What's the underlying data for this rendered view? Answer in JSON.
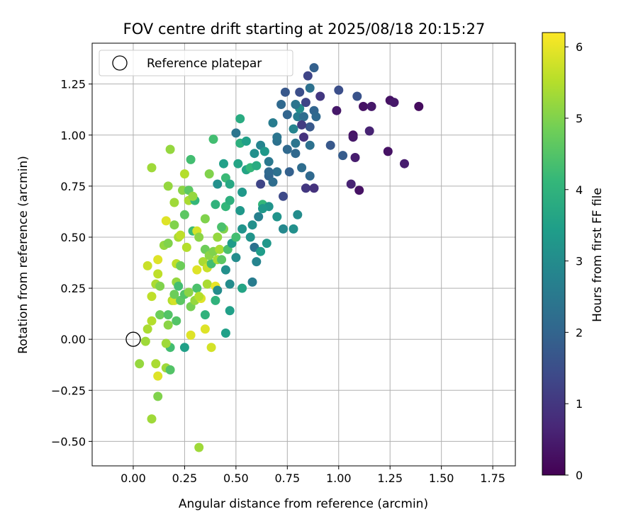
{
  "chart_data": {
    "type": "scatter",
    "title": "FOV centre drift starting at 2025/08/18 20:15:27",
    "xlabel": "Angular distance from reference (arcmin)",
    "ylabel": "Rotation from reference (arcmin)",
    "xlim": [
      -0.2,
      1.86
    ],
    "ylim": [
      -0.62,
      1.45
    ],
    "xticks": [
      "0.00",
      "0.25",
      "0.50",
      "0.75",
      "1.00",
      "1.25",
      "1.50",
      "1.75"
    ],
    "yticks": [
      "−0.50",
      "−0.25",
      "0.00",
      "0.25",
      "0.50",
      "0.75",
      "1.00",
      "1.25"
    ],
    "grid": true,
    "legend": {
      "placement": "top-left",
      "entries": [
        {
          "label": "Reference platepar",
          "marker": "open-circle"
        }
      ]
    },
    "reference_point": {
      "x": 0.0,
      "y": 0.0
    },
    "colorbar": {
      "label": "Hours from first FF file",
      "range": [
        0,
        6.2
      ],
      "ticks": [
        "0",
        "1",
        "2",
        "3",
        "4",
        "5",
        "6"
      ],
      "colormap": "viridis",
      "colormap_stops": [
        "#440154",
        "#482878",
        "#3e4989",
        "#31688e",
        "#26828e",
        "#1f9e89",
        "#35b779",
        "#6ece58",
        "#b5de2b",
        "#fde725"
      ]
    },
    "points": [
      [
        0.32,
        -0.53,
        5.3
      ],
      [
        0.09,
        -0.39,
        5.3
      ],
      [
        0.12,
        -0.28,
        5.0
      ],
      [
        0.12,
        -0.18,
        5.9
      ],
      [
        0.16,
        -0.14,
        5.3
      ],
      [
        0.18,
        -0.15,
        4.5
      ],
      [
        0.11,
        -0.12,
        5.4
      ],
      [
        0.03,
        -0.12,
        5.2
      ],
      [
        0.25,
        -0.04,
        3.5
      ],
      [
        0.18,
        -0.04,
        4.3
      ],
      [
        0.16,
        -0.02,
        5.3
      ],
      [
        0.38,
        -0.04,
        5.8
      ],
      [
        0.06,
        -0.01,
        5.3
      ],
      [
        0.07,
        0.05,
        5.4
      ],
      [
        0.09,
        0.09,
        5.5
      ],
      [
        0.17,
        0.07,
        5.1
      ],
      [
        0.21,
        0.09,
        4.5
      ],
      [
        0.13,
        0.12,
        4.8
      ],
      [
        0.17,
        0.12,
        4.5
      ],
      [
        0.28,
        0.02,
        5.9
      ],
      [
        0.35,
        0.05,
        5.9
      ],
      [
        0.45,
        0.03,
        3.5
      ],
      [
        0.09,
        0.21,
        5.6
      ],
      [
        0.19,
        0.19,
        5.5
      ],
      [
        0.2,
        0.19,
        5.8
      ],
      [
        0.23,
        0.19,
        4.6
      ],
      [
        0.25,
        0.22,
        4.5
      ],
      [
        0.28,
        0.16,
        4.9
      ],
      [
        0.3,
        0.19,
        5.2
      ],
      [
        0.33,
        0.2,
        5.9
      ],
      [
        0.35,
        0.12,
        4.0
      ],
      [
        0.4,
        0.19,
        4.0
      ],
      [
        0.47,
        0.14,
        3.5
      ],
      [
        0.11,
        0.27,
        5.4
      ],
      [
        0.13,
        0.26,
        5.0
      ],
      [
        0.2,
        0.22,
        4.8
      ],
      [
        0.21,
        0.28,
        5.2
      ],
      [
        0.22,
        0.26,
        4.3
      ],
      [
        0.27,
        0.23,
        5.1
      ],
      [
        0.31,
        0.25,
        4.4
      ],
      [
        0.32,
        0.21,
        5.5
      ],
      [
        0.36,
        0.27,
        5.4
      ],
      [
        0.4,
        0.26,
        6.0
      ],
      [
        0.41,
        0.24,
        3.0
      ],
      [
        0.47,
        0.27,
        3.0
      ],
      [
        0.53,
        0.25,
        3.6
      ],
      [
        0.58,
        0.28,
        2.6
      ],
      [
        0.07,
        0.36,
        5.7
      ],
      [
        0.12,
        0.32,
        5.6
      ],
      [
        0.21,
        0.37,
        5.6
      ],
      [
        0.23,
        0.36,
        4.8
      ],
      [
        0.31,
        0.34,
        5.9
      ],
      [
        0.34,
        0.38,
        5.4
      ],
      [
        0.36,
        0.35,
        5.7
      ],
      [
        0.38,
        0.37,
        4.3
      ],
      [
        0.41,
        0.39,
        5.4
      ],
      [
        0.43,
        0.39,
        4.6
      ],
      [
        0.45,
        0.34,
        3.1
      ],
      [
        0.5,
        0.4,
        3.0
      ],
      [
        0.6,
        0.38,
        2.8
      ],
      [
        0.12,
        0.39,
        5.9
      ],
      [
        0.15,
        0.46,
        5.2
      ],
      [
        0.17,
        0.47,
        5.0
      ],
      [
        0.22,
        0.5,
        5.4
      ],
      [
        0.23,
        0.51,
        5.6
      ],
      [
        0.26,
        0.45,
        5.5
      ],
      [
        0.29,
        0.53,
        4.2
      ],
      [
        0.31,
        0.53,
        5.8
      ],
      [
        0.32,
        0.5,
        5.1
      ],
      [
        0.35,
        0.44,
        4.8
      ],
      [
        0.37,
        0.41,
        5.1
      ],
      [
        0.39,
        0.43,
        5.0
      ],
      [
        0.42,
        0.44,
        5.4
      ],
      [
        0.41,
        0.5,
        5.2
      ],
      [
        0.44,
        0.54,
        5.0
      ],
      [
        0.46,
        0.44,
        4.4
      ],
      [
        0.48,
        0.47,
        3.4
      ],
      [
        0.5,
        0.5,
        4.3
      ],
      [
        0.53,
        0.54,
        3.2
      ],
      [
        0.57,
        0.5,
        3.2
      ],
      [
        0.59,
        0.45,
        2.3
      ],
      [
        0.62,
        0.43,
        3.4
      ],
      [
        0.65,
        0.47,
        3.3
      ],
      [
        0.16,
        0.58,
        5.9
      ],
      [
        0.2,
        0.56,
        5.0
      ],
      [
        0.25,
        0.61,
        4.6
      ],
      [
        0.27,
        0.68,
        5.4
      ],
      [
        0.3,
        0.68,
        4.1
      ],
      [
        0.35,
        0.59,
        5.0
      ],
      [
        0.4,
        0.66,
        4.0
      ],
      [
        0.43,
        0.55,
        4.4
      ],
      [
        0.45,
        0.65,
        4.1
      ],
      [
        0.47,
        0.68,
        3.9
      ],
      [
        0.52,
        0.63,
        3.3
      ],
      [
        0.53,
        0.72,
        3.3
      ],
      [
        0.58,
        0.56,
        3.1
      ],
      [
        0.61,
        0.6,
        2.7
      ],
      [
        0.63,
        0.66,
        4.1
      ],
      [
        0.66,
        0.65,
        3.2
      ],
      [
        0.7,
        0.6,
        3.2
      ],
      [
        0.73,
        0.54,
        2.9
      ],
      [
        0.78,
        0.54,
        3.1
      ],
      [
        0.8,
        0.61,
        3.0
      ],
      [
        0.17,
        0.75,
        5.2
      ],
      [
        0.2,
        0.67,
        5.3
      ],
      [
        0.24,
        0.73,
        5.1
      ],
      [
        0.25,
        0.81,
        5.5
      ],
      [
        0.27,
        0.73,
        4.6
      ],
      [
        0.29,
        0.7,
        5.2
      ],
      [
        0.37,
        0.81,
        5.0
      ],
      [
        0.41,
        0.76,
        3.1
      ],
      [
        0.45,
        0.79,
        4.2
      ],
      [
        0.47,
        0.76,
        3.7
      ],
      [
        0.51,
        0.86,
        3.6
      ],
      [
        0.55,
        0.83,
        3.6
      ],
      [
        0.57,
        0.84,
        4.1
      ],
      [
        0.6,
        0.85,
        3.8
      ],
      [
        0.62,
        0.76,
        1.3
      ],
      [
        0.66,
        0.8,
        2.0
      ],
      [
        0.68,
        0.77,
        2.2
      ],
      [
        0.7,
        0.82,
        2.3
      ],
      [
        0.73,
        0.7,
        1.4
      ],
      [
        0.76,
        0.82,
        1.9
      ],
      [
        0.79,
        0.91,
        2.1
      ],
      [
        0.84,
        0.74,
        1.0
      ],
      [
        0.86,
        0.8,
        2.1
      ],
      [
        0.09,
        0.84,
        5.3
      ],
      [
        0.18,
        0.93,
        5.2
      ],
      [
        0.28,
        0.88,
        4.3
      ],
      [
        0.39,
        0.98,
        4.3
      ],
      [
        0.44,
        0.86,
        3.5
      ],
      [
        0.52,
        0.96,
        3.9
      ],
      [
        0.55,
        0.97,
        3.5
      ],
      [
        0.59,
        0.91,
        3.1
      ],
      [
        0.62,
        0.95,
        2.8
      ],
      [
        0.64,
        0.92,
        3.3
      ],
      [
        0.66,
        0.87,
        2.5
      ],
      [
        0.7,
        0.97,
        2.3
      ],
      [
        0.75,
        0.93,
        2.1
      ],
      [
        0.79,
        0.96,
        2.4
      ],
      [
        0.82,
        0.84,
        2.2
      ],
      [
        0.86,
        0.95,
        2.3
      ],
      [
        0.88,
        0.74,
        0.9
      ],
      [
        0.52,
        1.08,
        3.8
      ],
      [
        0.5,
        1.01,
        2.4
      ],
      [
        0.68,
        1.06,
        2.6
      ],
      [
        0.7,
        0.99,
        2.4
      ],
      [
        0.72,
        1.15,
        2.1
      ],
      [
        0.75,
        1.1,
        2.0
      ],
      [
        0.78,
        1.03,
        2.8
      ],
      [
        0.8,
        1.09,
        2.6
      ],
      [
        0.81,
        1.13,
        3.0
      ],
      [
        0.83,
        1.09,
        2.2
      ],
      [
        0.84,
        1.16,
        1.3
      ],
      [
        0.86,
        1.04,
        1.7
      ],
      [
        0.88,
        1.12,
        2.0
      ],
      [
        0.89,
        1.09,
        2.1
      ],
      [
        0.91,
        1.19,
        1.0
      ],
      [
        0.96,
        0.95,
        1.7
      ],
      [
        0.99,
        1.12,
        0.4
      ],
      [
        1.02,
        0.9,
        1.8
      ],
      [
        1.06,
        0.76,
        0.6
      ],
      [
        1.07,
        1.0,
        0.3
      ],
      [
        1.08,
        0.89,
        0.5
      ],
      [
        1.09,
        1.19,
        1.6
      ],
      [
        1.1,
        0.73,
        0.3
      ],
      [
        1.12,
        1.14,
        0.3
      ],
      [
        1.15,
        1.02,
        0.6
      ],
      [
        1.16,
        1.14,
        0.4
      ],
      [
        1.24,
        0.92,
        0.3
      ],
      [
        1.25,
        1.17,
        0.3
      ],
      [
        1.27,
        1.16,
        0.4
      ],
      [
        1.32,
        0.86,
        0.5
      ],
      [
        1.39,
        1.14,
        0.2
      ],
      [
        0.74,
        1.21,
        1.7
      ],
      [
        0.79,
        1.15,
        2.4
      ],
      [
        0.81,
        1.21,
        1.5
      ],
      [
        0.85,
        1.29,
        1.3
      ],
      [
        0.88,
        1.33,
        1.9
      ],
      [
        0.86,
        1.23,
        2.3
      ],
      [
        1.0,
        1.22,
        1.5
      ],
      [
        1.07,
        0.99,
        0.4
      ],
      [
        0.82,
        1.05,
        1.1
      ],
      [
        0.83,
        0.99,
        0.9
      ],
      [
        0.66,
        0.82,
        2.1
      ],
      [
        0.63,
        0.64,
        3.3
      ]
    ]
  }
}
